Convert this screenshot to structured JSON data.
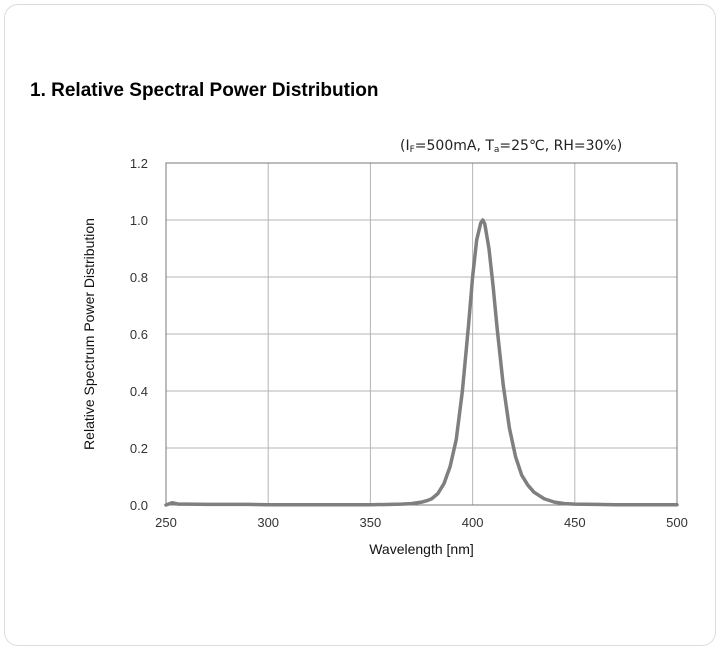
{
  "heading": "1. Relative Spectral Power Distribution",
  "conditions": {
    "prefix": "(I",
    "if_sub": "F",
    "if_val": "=500mA, T",
    "ta_sub": "a",
    "ta_val": "=25℃, RH=30%)"
  },
  "chart_data": {
    "type": "line",
    "title": "1. Relative Spectral Power Distribution",
    "xlabel": "Wavelength [nm]",
    "ylabel": "Relative Spectrum Power Distribution",
    "xlim": [
      250,
      500
    ],
    "ylim": [
      0,
      1.2
    ],
    "x_ticks": [
      "250",
      "300",
      "350",
      "400",
      "450",
      "500"
    ],
    "y_ticks": [
      "0.0",
      "0.2",
      "0.4",
      "0.6",
      "0.8",
      "1.0",
      "1.2"
    ],
    "grid": true,
    "line_color": "#7f7f7f",
    "series": [
      {
        "x": [
          250,
          253,
          256,
          260,
          270,
          280,
          290,
          300,
          320,
          340,
          350,
          360,
          365,
          370,
          375,
          378,
          380,
          383,
          386,
          389,
          392,
          395,
          398,
          400,
          402,
          404,
          405,
          406,
          408,
          410,
          412,
          415,
          418,
          421,
          424,
          427,
          430,
          435,
          440,
          445,
          450,
          460,
          470,
          480,
          490,
          500
        ],
        "y": [
          0.0,
          0.008,
          0.003,
          0.003,
          0.002,
          0.002,
          0.002,
          0.001,
          0.001,
          0.001,
          0.001,
          0.002,
          0.003,
          0.005,
          0.01,
          0.016,
          0.022,
          0.04,
          0.075,
          0.135,
          0.23,
          0.4,
          0.63,
          0.8,
          0.93,
          0.99,
          1.0,
          0.985,
          0.9,
          0.77,
          0.62,
          0.42,
          0.27,
          0.17,
          0.105,
          0.07,
          0.045,
          0.022,
          0.01,
          0.005,
          0.003,
          0.002,
          0.001,
          0.001,
          0.001,
          0.001
        ]
      }
    ]
  }
}
